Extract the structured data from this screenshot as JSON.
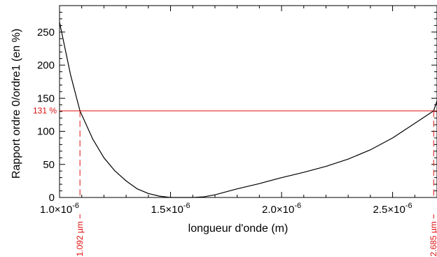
{
  "chart_data": {
    "type": "line",
    "xlabel": "longueur d'onde (m)",
    "ylabel": "Rapport ordre 0/ordre1 (en %)",
    "xlim": [
      1e-06,
      2.7e-06
    ],
    "ylim": [
      0,
      290
    ],
    "grid": false,
    "x_ticks": [
      {
        "value": 1e-06,
        "mantissa": "1.0",
        "exp": "-6"
      },
      {
        "value": 1.5e-06,
        "mantissa": "1.5",
        "exp": "-6"
      },
      {
        "value": 2e-06,
        "mantissa": "2.0",
        "exp": "-6"
      },
      {
        "value": 2.5e-06,
        "mantissa": "2.5",
        "exp": "-6"
      }
    ],
    "y_ticks": [
      0,
      50,
      100,
      150,
      200,
      250
    ],
    "series": [
      {
        "color": "#000000",
        "x": [
          1e-06,
          1.05e-06,
          1.092e-06,
          1.15e-06,
          1.2e-06,
          1.25e-06,
          1.3e-06,
          1.35e-06,
          1.4e-06,
          1.45e-06,
          1.5e-06,
          1.55e-06,
          1.6e-06,
          1.65e-06,
          1.7e-06,
          1.8e-06,
          1.9e-06,
          2e-06,
          2.1e-06,
          2.2e-06,
          2.3e-06,
          2.4e-06,
          2.5e-06,
          2.6e-06,
          2.685e-06,
          2.7e-06
        ],
        "y": [
          265,
          185,
          131,
          88,
          60,
          40,
          25,
          13,
          6,
          2,
          0,
          0,
          0,
          1,
          4,
          13,
          21,
          30,
          38,
          47,
          58,
          72,
          90,
          112,
          131,
          146
        ]
      }
    ],
    "reference_line": {
      "y": 131,
      "label": "131 %",
      "color": "#e01010"
    },
    "markers": [
      {
        "x": 1.092e-06,
        "label": "1.092 µm",
        "color": "#e01010"
      },
      {
        "x": 2.685e-06,
        "label": "2.685 µm",
        "color": "#e01010"
      }
    ]
  }
}
